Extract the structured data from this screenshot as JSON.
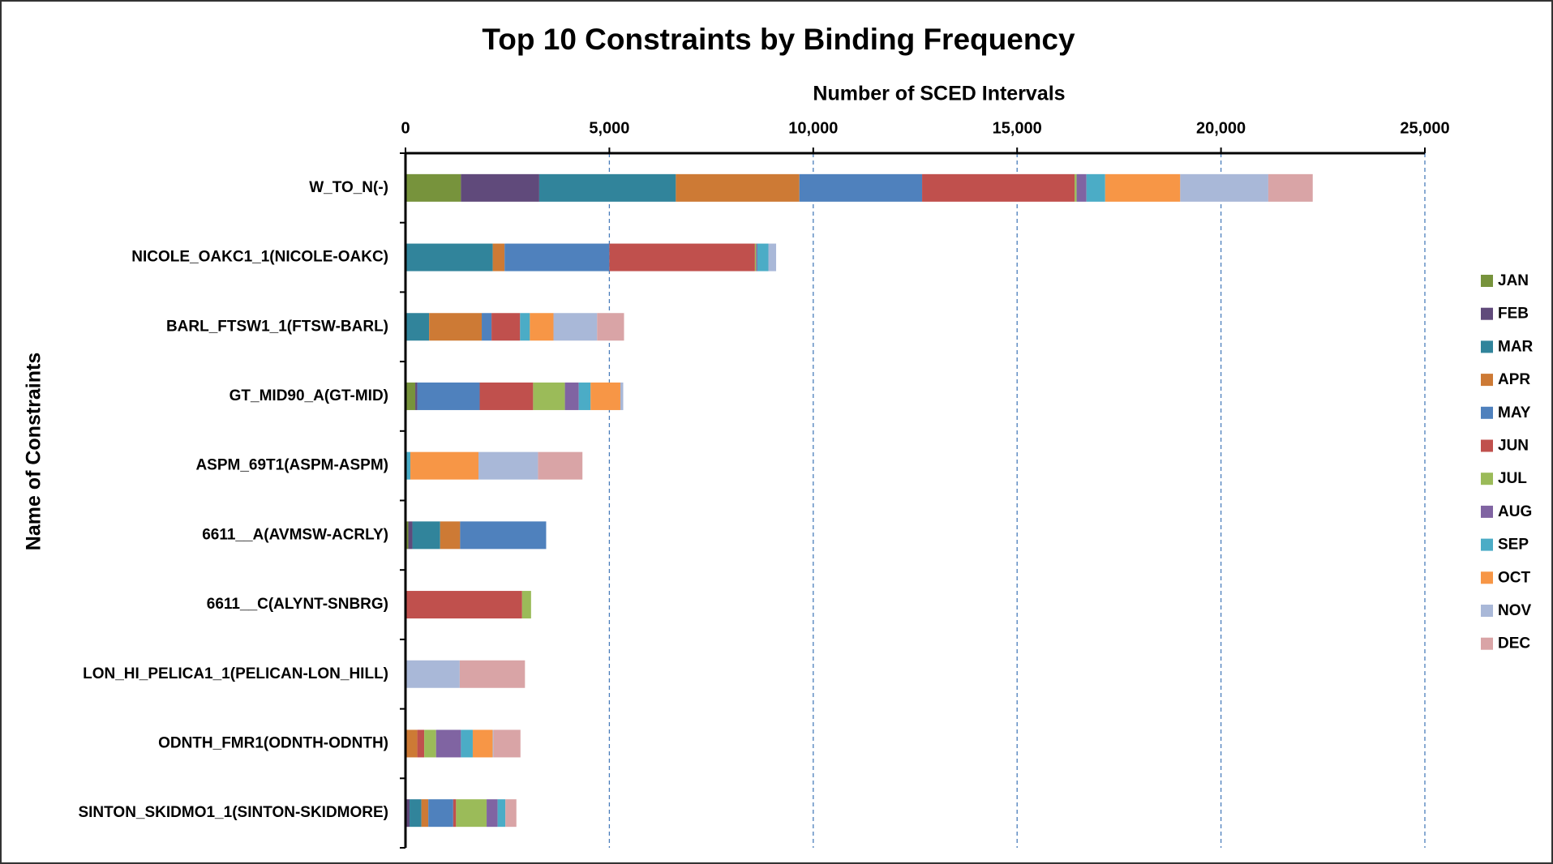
{
  "chart_data": {
    "type": "bar",
    "orientation": "horizontal",
    "stacked": true,
    "title": "Top 10 Constraints by Binding Frequency",
    "x_label": "Number of SCED Intervals",
    "y_label": "Name of Constraints",
    "categories": [
      "W_TO_N(-)",
      "NICOLE_OAKC1_1(NICOLE-OAKC)",
      "BARL_FTSW1_1(FTSW-BARL)",
      "GT_MID90_A(GT-MID)",
      "ASPM_69T1(ASPM-ASPM)",
      "6611__A(AVMSW-ACRLY)",
      "6611__C(ALYNT-SNBRG)",
      "LON_HI_PELICA1_1(PELICAN-LON_HILL)",
      "ODNTH_FMR1(ODNTH-ODNTH)",
      "SINTON_SKIDMO1_1(SINTON-SKIDMORE)"
    ],
    "series": [
      {
        "name": "JAN",
        "color": "#77933c",
        "values": [
          1360,
          0,
          0,
          240,
          0,
          70,
          0,
          0,
          0,
          0
        ]
      },
      {
        "name": "FEB",
        "color": "#604a7b",
        "values": [
          1920,
          0,
          0,
          50,
          0,
          100,
          0,
          0,
          0,
          100
        ]
      },
      {
        "name": "MAR",
        "color": "#31849b",
        "values": [
          3350,
          2140,
          580,
          0,
          0,
          680,
          0,
          0,
          0,
          290
        ]
      },
      {
        "name": "APR",
        "color": "#cd7a35",
        "values": [
          3030,
          290,
          1290,
          0,
          0,
          490,
          0,
          0,
          290,
          170
        ]
      },
      {
        "name": "MAY",
        "color": "#4f81bd",
        "values": [
          3010,
          2570,
          240,
          1530,
          0,
          2110,
          0,
          0,
          0,
          610
        ]
      },
      {
        "name": "JUN",
        "color": "#c0504d",
        "values": [
          3740,
          3570,
          700,
          1310,
          0,
          0,
          2860,
          0,
          170,
          70
        ]
      },
      {
        "name": "JUL",
        "color": "#9bbb59",
        "values": [
          50,
          30,
          0,
          780,
          0,
          0,
          220,
          0,
          290,
          750
        ]
      },
      {
        "name": "AUG",
        "color": "#8064a2",
        "values": [
          240,
          30,
          0,
          340,
          0,
          0,
          0,
          0,
          610,
          270
        ]
      },
      {
        "name": "SEP",
        "color": "#4bacc6",
        "values": [
          460,
          270,
          240,
          290,
          120,
          0,
          0,
          0,
          290,
          190
        ]
      },
      {
        "name": "OCT",
        "color": "#f79646",
        "values": [
          1840,
          0,
          580,
          730,
          1670,
          0,
          0,
          0,
          490,
          0
        ]
      },
      {
        "name": "NOV",
        "color": "#a9b8d8",
        "values": [
          2160,
          190,
          1070,
          70,
          1460,
          0,
          0,
          1330,
          20,
          0
        ]
      },
      {
        "name": "DEC",
        "color": "#d9a4a6",
        "values": [
          1090,
          0,
          660,
          0,
          1090,
          0,
          0,
          1600,
          660,
          270
        ]
      }
    ],
    "xlim": [
      0,
      25000
    ],
    "xticks": [
      0,
      {
        "value": 5000,
        "label": "5,000"
      },
      {
        "value": 10000,
        "label": "10,000"
      },
      {
        "value": 15000,
        "label": "15,000"
      },
      {
        "value": 20000,
        "label": "20,000"
      },
      {
        "value": 25000,
        "label": "25,000"
      }
    ],
    "grid": true,
    "legend": "right"
  }
}
